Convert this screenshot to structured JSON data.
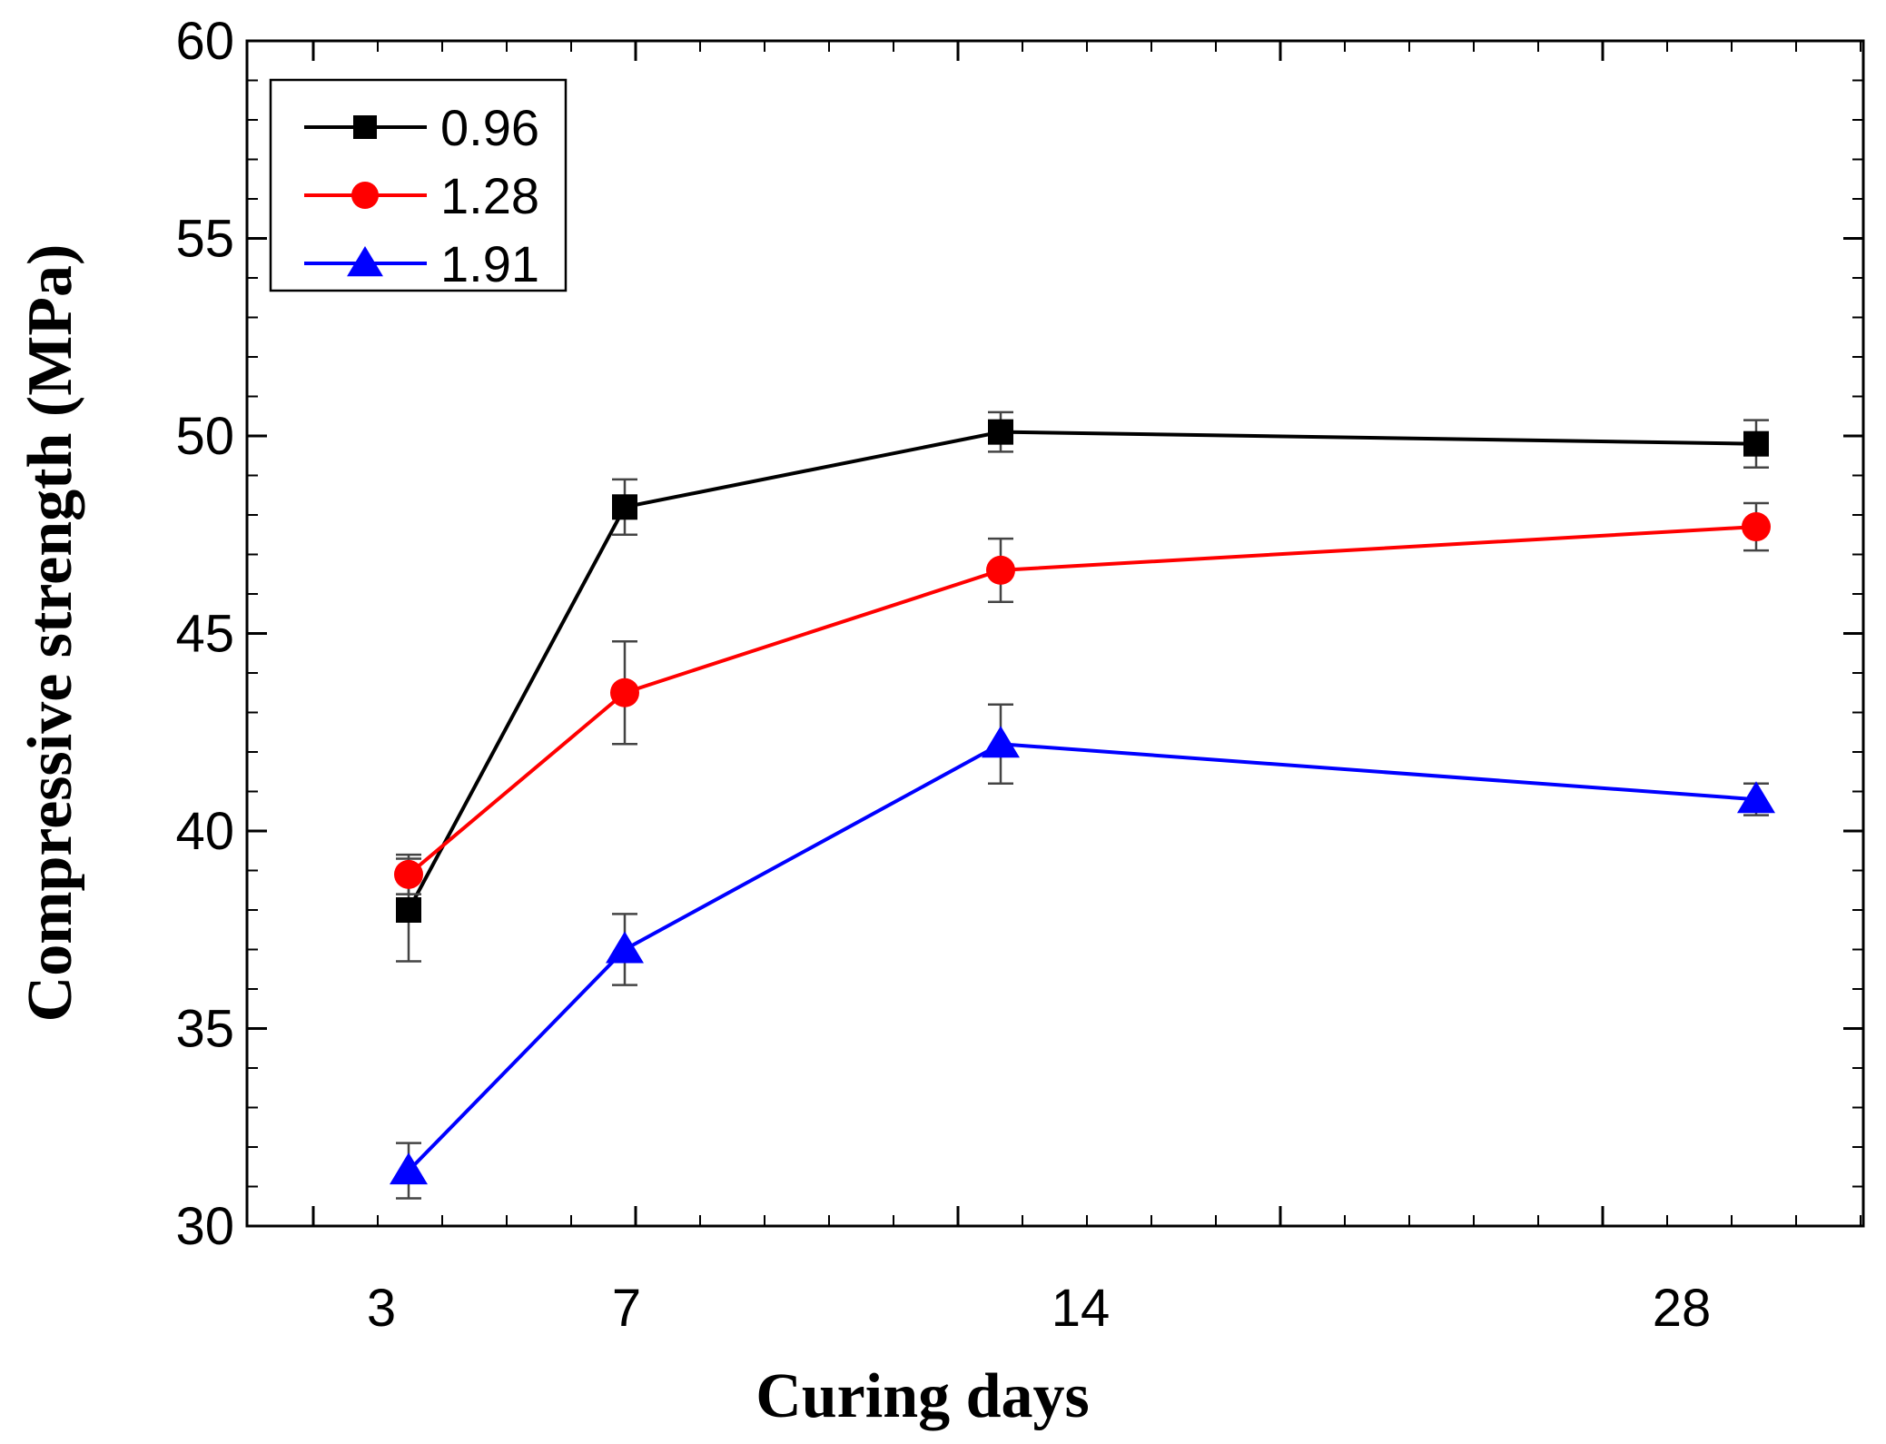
{
  "chart_data": {
    "type": "line",
    "title": "",
    "xlabel": "Curing days",
    "ylabel": "Compressive strength (MPa)",
    "ylim": [
      30,
      60
    ],
    "y_ticks": [
      "30",
      "35",
      "40",
      "45",
      "50",
      "55",
      "60"
    ],
    "x_tick_labels": [
      "3",
      "7",
      "14",
      "28"
    ],
    "legend_position": "top-left",
    "series": [
      {
        "name": "0.96",
        "color": "#000000",
        "marker": "square",
        "x": [
          "3",
          "7",
          "14",
          "28"
        ],
        "values": [
          38.0,
          48.2,
          50.1,
          49.8
        ],
        "errors": [
          1.3,
          0.7,
          0.5,
          0.6
        ]
      },
      {
        "name": "1.28",
        "color": "#ff0000",
        "marker": "circle",
        "x": [
          "3",
          "7",
          "14",
          "28"
        ],
        "values": [
          38.9,
          43.5,
          46.6,
          47.7
        ],
        "errors": [
          0.5,
          1.3,
          0.8,
          0.6
        ]
      },
      {
        "name": "1.91",
        "color": "#0000ff",
        "marker": "triangle",
        "x": [
          "3",
          "7",
          "14",
          "28"
        ],
        "values": [
          31.4,
          37.0,
          42.2,
          40.8
        ],
        "errors": [
          0.7,
          0.9,
          1.0,
          0.4
        ]
      }
    ]
  }
}
